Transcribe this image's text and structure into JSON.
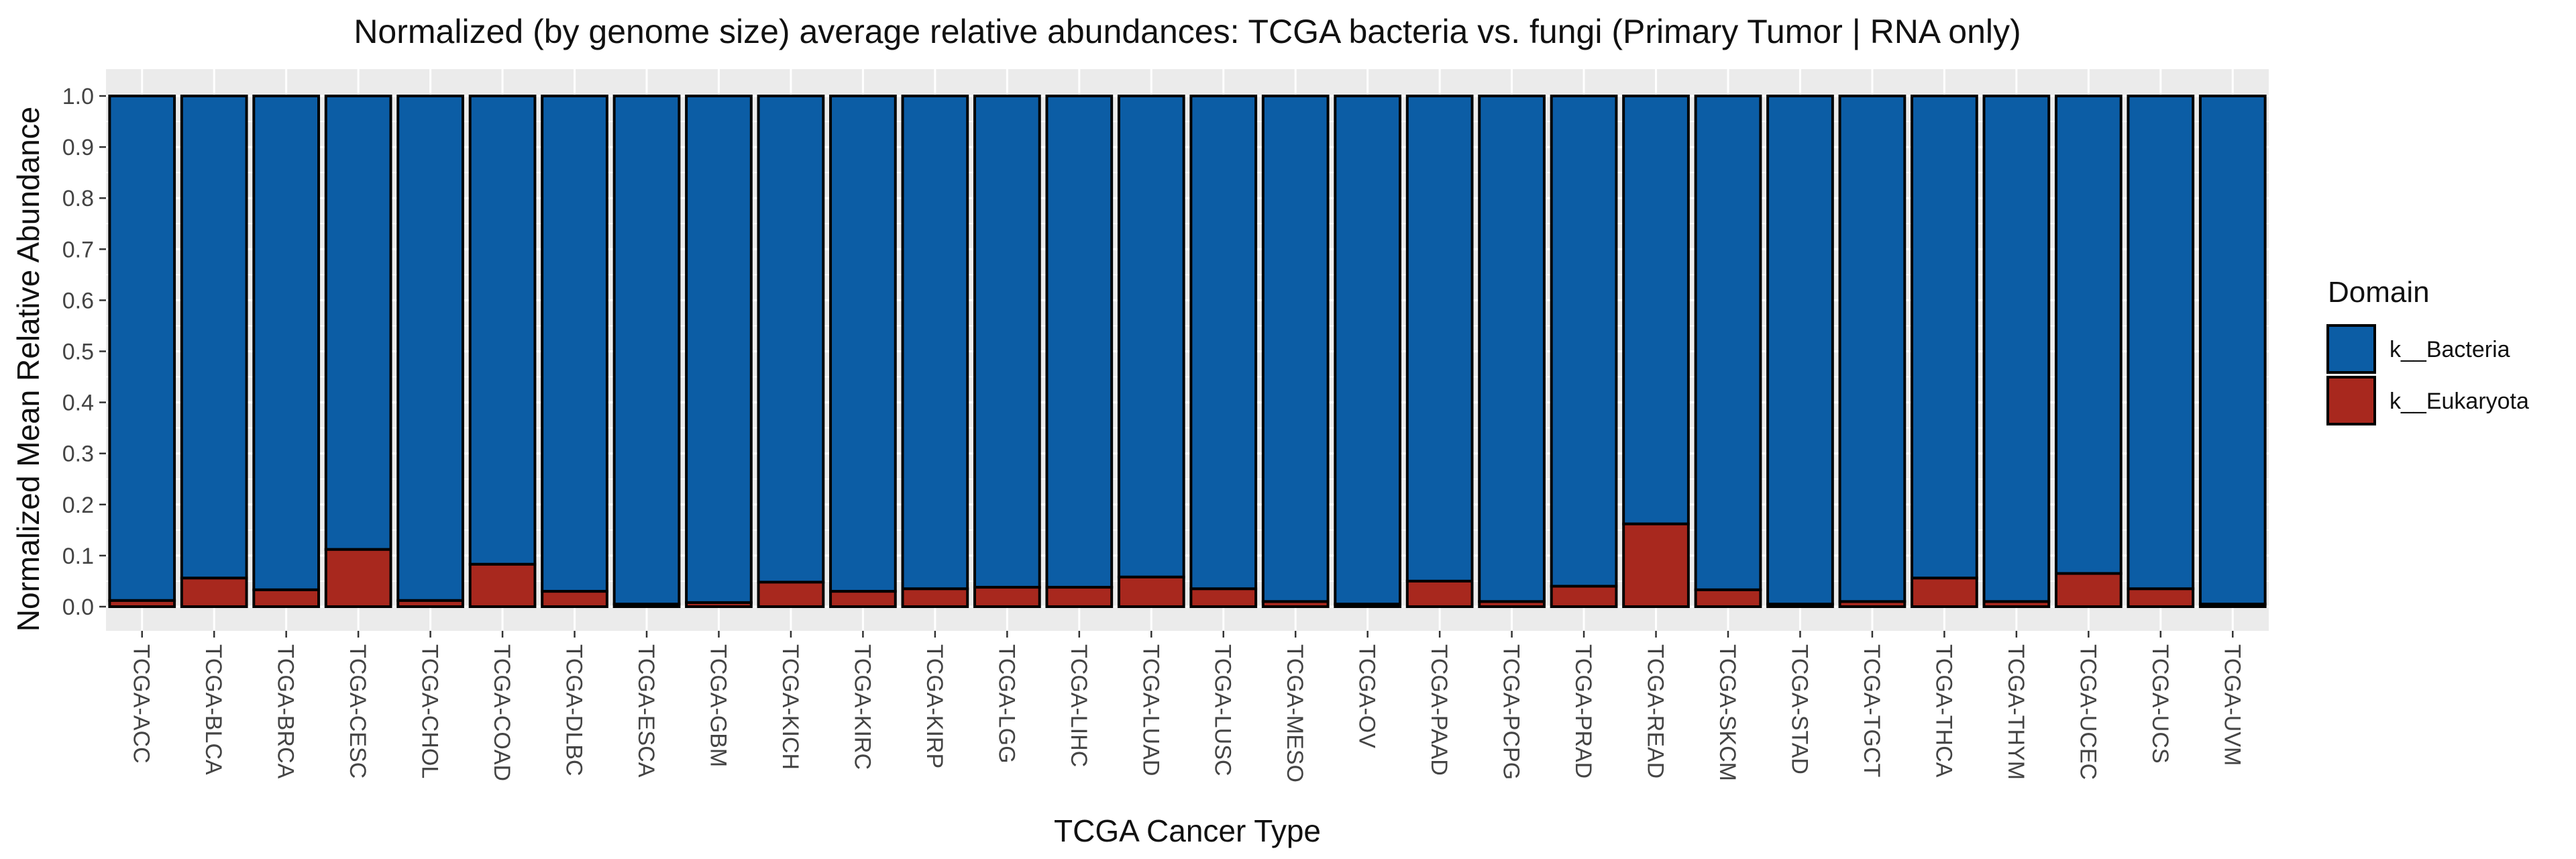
{
  "chart_data": {
    "type": "bar",
    "stacked": true,
    "title": "Normalized (by genome size) average relative abundances: TCGA bacteria vs. fungi (Primary Tumor | RNA only)",
    "xlabel": "TCGA Cancer Type",
    "ylabel": "Normalized Mean Relative Abundance",
    "ylim": [
      0,
      1
    ],
    "yticks": [
      "0.0",
      "0.1",
      "0.2",
      "0.3",
      "0.4",
      "0.5",
      "0.6",
      "0.7",
      "0.8",
      "0.9",
      "1.0"
    ],
    "grid": true,
    "legend": {
      "title": "Domain",
      "position": "right"
    },
    "categories": [
      "TCGA-ACC",
      "TCGA-BLCA",
      "TCGA-BRCA",
      "TCGA-CESC",
      "TCGA-CHOL",
      "TCGA-COAD",
      "TCGA-DLBC",
      "TCGA-ESCA",
      "TCGA-GBM",
      "TCGA-KICH",
      "TCGA-KIRC",
      "TCGA-KIRP",
      "TCGA-LGG",
      "TCGA-LIHC",
      "TCGA-LUAD",
      "TCGA-LUSC",
      "TCGA-MESO",
      "TCGA-OV",
      "TCGA-PAAD",
      "TCGA-PCPG",
      "TCGA-PRAD",
      "TCGA-READ",
      "TCGA-SKCM",
      "TCGA-STAD",
      "TCGA-TGCT",
      "TCGA-THCA",
      "TCGA-THYM",
      "TCGA-UCEC",
      "TCGA-UCS",
      "TCGA-UVM"
    ],
    "series": [
      {
        "name": "k__Bacteria",
        "color": "#0C5DA5",
        "values": [
          0.988,
          0.944,
          0.967,
          0.888,
          0.988,
          0.917,
          0.97,
          0.995,
          0.992,
          0.952,
          0.97,
          0.965,
          0.962,
          0.962,
          0.942,
          0.965,
          0.99,
          0.995,
          0.95,
          0.99,
          0.96,
          0.838,
          0.967,
          0.995,
          0.99,
          0.944,
          0.99,
          0.935,
          0.965,
          0.995
        ]
      },
      {
        "name": "k__Eukaryota",
        "color": "#A8281E",
        "values": [
          0.012,
          0.056,
          0.033,
          0.112,
          0.012,
          0.083,
          0.03,
          0.005,
          0.008,
          0.048,
          0.03,
          0.035,
          0.038,
          0.038,
          0.058,
          0.035,
          0.01,
          0.005,
          0.05,
          0.01,
          0.04,
          0.162,
          0.033,
          0.005,
          0.01,
          0.056,
          0.01,
          0.065,
          0.035,
          0.005
        ]
      }
    ]
  }
}
